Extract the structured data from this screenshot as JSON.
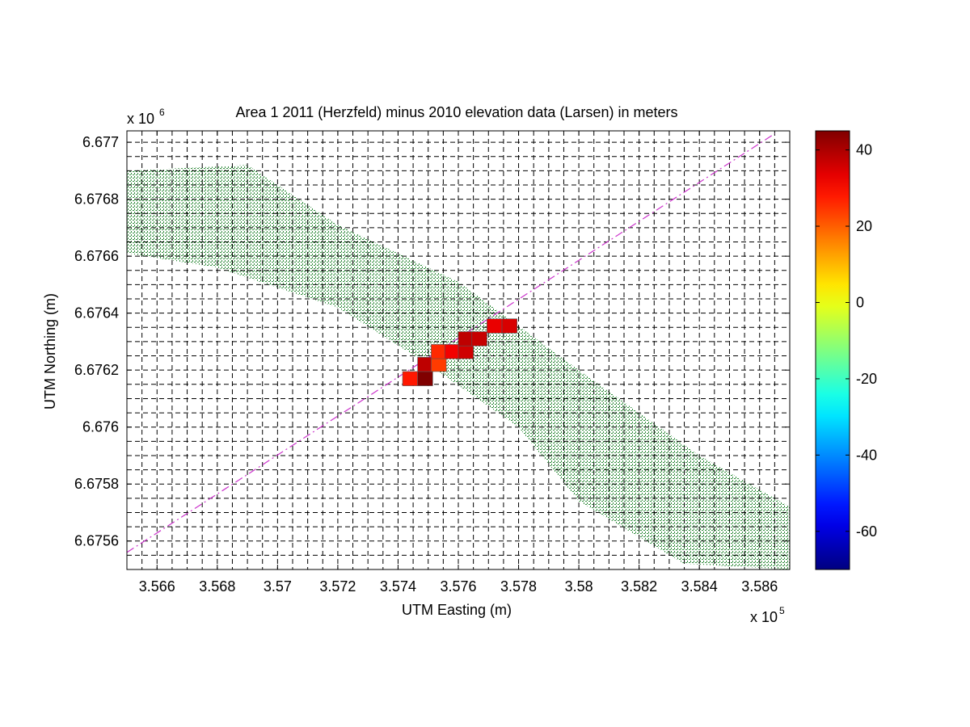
{
  "chart_data": {
    "type": "heatmap",
    "title": "Area 1 2011 (Herzfeld) minus 2010 elevation data (Larsen) in meters",
    "xlabel": "UTM Easting (m)",
    "ylabel": "UTM Northing (m)",
    "x_multiplier": "x 10",
    "x_exponent": "5",
    "y_multiplier": "x 10",
    "y_exponent": "6",
    "xlim": [
      356500,
      358700
    ],
    "ylim": [
      6675500,
      6677040
    ],
    "x_ticks": [
      356600,
      356800,
      357000,
      357200,
      357400,
      357600,
      357800,
      358000,
      358200,
      358400,
      358600
    ],
    "x_tick_labels": [
      "3.566",
      "3.568",
      "3.57",
      "3.572",
      "3.574",
      "3.576",
      "3.578",
      "3.58",
      "3.582",
      "3.584",
      "3.586"
    ],
    "y_ticks": [
      6675600,
      6675800,
      6676000,
      6676200,
      6676400,
      6676600,
      6676800,
      6677000
    ],
    "y_tick_labels": [
      "6.6756",
      "6.6758",
      "6.676",
      "6.6762",
      "6.6764",
      "6.6766",
      "6.6768",
      "6.677"
    ],
    "grid": true,
    "grid_style": "dashed",
    "colormap": "jet",
    "clim": [
      -70,
      45
    ],
    "colorbar_ticks": [
      40,
      20,
      0,
      -20,
      -40,
      -60
    ],
    "colorbar_tick_labels": [
      "40",
      "20",
      "0",
      "-20",
      "-40",
      "-60"
    ],
    "cells": [
      {
        "x": 357440,
        "y": 6676170,
        "value": 28
      },
      {
        "x": 357490,
        "y": 6676170,
        "value": 45
      },
      {
        "x": 357490,
        "y": 6676220,
        "value": 38
      },
      {
        "x": 357535,
        "y": 6676220,
        "value": 24
      },
      {
        "x": 357535,
        "y": 6676265,
        "value": 26
      },
      {
        "x": 357580,
        "y": 6676265,
        "value": 32
      },
      {
        "x": 357625,
        "y": 6676265,
        "value": 36
      },
      {
        "x": 357625,
        "y": 6676310,
        "value": 38
      },
      {
        "x": 357670,
        "y": 6676310,
        "value": 37
      },
      {
        "x": 357720,
        "y": 6676355,
        "value": 33
      },
      {
        "x": 357770,
        "y": 6676355,
        "value": 35
      }
    ],
    "track_line": {
      "x": [
        356500,
        358650
      ],
      "y": [
        6675560,
        6677030
      ],
      "color": "#cc33cc",
      "style": "dashed"
    },
    "swath": {
      "color": "#2e8b3a",
      "points": [
        {
          "x": 356500,
          "y": 6676900
        },
        {
          "x": 356900,
          "y": 6676920
        },
        {
          "x": 357200,
          "y": 6676710
        },
        {
          "x": 357600,
          "y": 6676510
        },
        {
          "x": 358000,
          "y": 6676200
        },
        {
          "x": 358400,
          "y": 6675900
        },
        {
          "x": 358700,
          "y": 6675720
        },
        {
          "x": 358700,
          "y": 6675500
        },
        {
          "x": 358350,
          "y": 6675520
        },
        {
          "x": 358000,
          "y": 6675740
        },
        {
          "x": 357800,
          "y": 6676000
        },
        {
          "x": 357500,
          "y": 6676220
        },
        {
          "x": 357200,
          "y": 6676420
        },
        {
          "x": 356800,
          "y": 6676560
        },
        {
          "x": 356500,
          "y": 6676610
        }
      ]
    }
  }
}
